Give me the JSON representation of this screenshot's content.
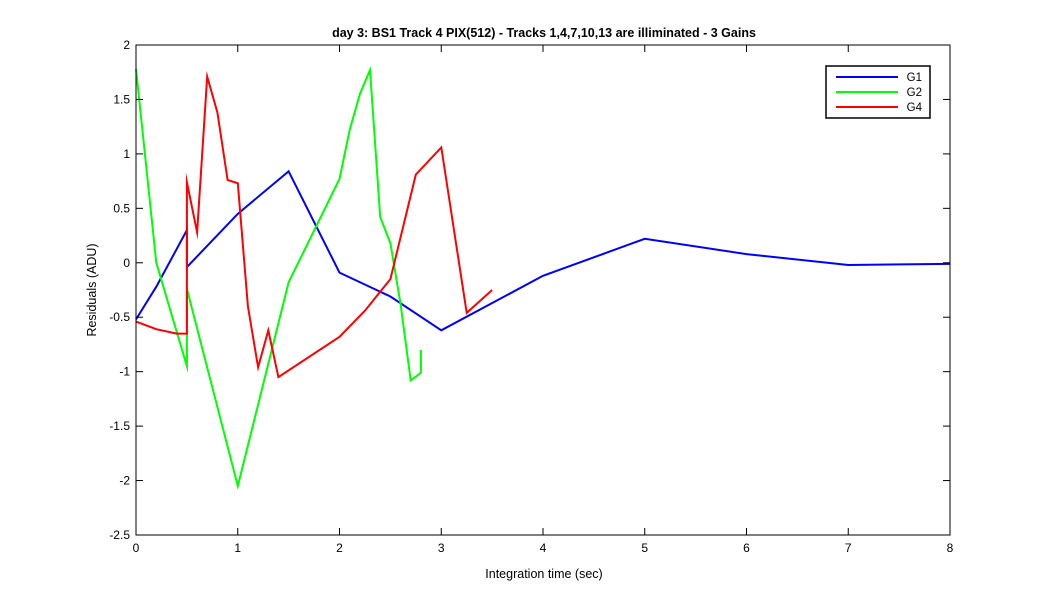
{
  "chart_data": {
    "type": "line",
    "title": "day 3: BS1  Track 4 PIX(512) - Tracks 1,4,7,10,13 are illiminated - 3 Gains",
    "xlabel": "Integration time (sec)",
    "ylabel": "Residuals (ADU)",
    "xlim": [
      0,
      8
    ],
    "ylim": [
      -2.5,
      2
    ],
    "xticks": [
      "0",
      "1",
      "2",
      "3",
      "4",
      "5",
      "6",
      "7",
      "8"
    ],
    "yticks": [
      "-2.5",
      "-2",
      "-1.5",
      "-1",
      "-0.5",
      "0",
      "0.5",
      "1",
      "1.5",
      "2"
    ],
    "grid": false,
    "legend_position": "top-right",
    "series": [
      {
        "name": "G1",
        "color": "#0000ff",
        "x": [
          0,
          0.2,
          0.5,
          0.5,
          1,
          1.5,
          2,
          2.5,
          3,
          4,
          5,
          6,
          7,
          8
        ],
        "y": [
          -0.52,
          -0.22,
          0.3,
          -0.04,
          0.45,
          0.84,
          -0.09,
          -0.31,
          -0.62,
          -0.12,
          0.22,
          0.08,
          -0.02,
          -0.01
        ]
      },
      {
        "name": "G2",
        "color": "#00ff00",
        "x": [
          0,
          0.2,
          0.5,
          0.5,
          1,
          1.5,
          2,
          2.1,
          2.2,
          2.3,
          2.4,
          2.5,
          2.6,
          2.7,
          2.8,
          2.8
        ],
        "y": [
          1.78,
          0.0,
          -0.95,
          -0.24,
          -2.05,
          -0.18,
          0.77,
          1.22,
          1.55,
          1.77,
          0.42,
          0.18,
          -0.38,
          -1.08,
          -1.01,
          -0.8
        ]
      },
      {
        "name": "G4",
        "color": "#ff0000",
        "x": [
          0,
          0.2,
          0.4,
          0.5,
          0.5,
          0.6,
          0.7,
          0.8,
          0.9,
          1.0,
          1.1,
          1.2,
          1.3,
          1.4,
          2.0,
          2.25,
          2.5,
          2.75,
          3.0,
          3.25,
          3.5
        ],
        "y": [
          -0.54,
          -0.61,
          -0.65,
          -0.65,
          0.74,
          0.28,
          1.71,
          1.38,
          0.76,
          0.73,
          -0.4,
          -0.96,
          -0.62,
          -1.05,
          -0.68,
          -0.44,
          -0.15,
          0.81,
          1.06,
          -0.46,
          -0.25
        ]
      }
    ]
  }
}
